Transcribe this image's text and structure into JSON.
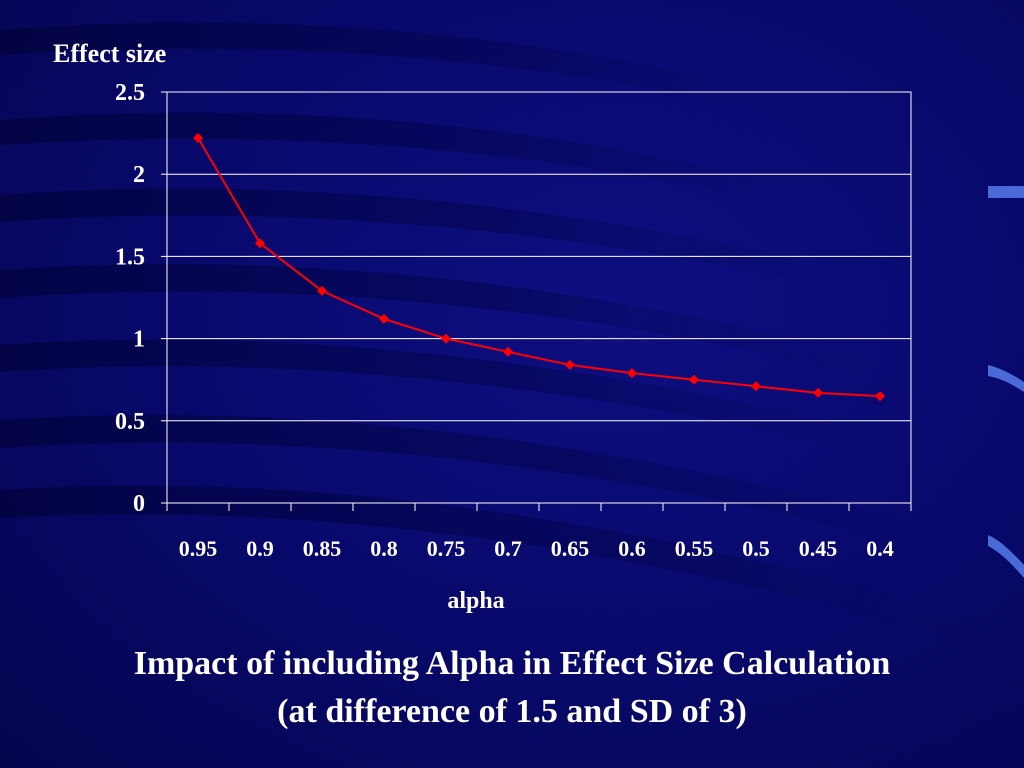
{
  "colors": {
    "background": "#0a0a6e",
    "plot_lines": "#ffffff",
    "series": "#ff0000"
  },
  "caption": {
    "line1": "Impact of including Alpha in Effect Size Calculation",
    "line2": "(at difference of 1.5 and SD of 3)"
  },
  "chart_data": {
    "type": "line",
    "title": "",
    "xlabel": "alpha",
    "ylabel": "Effect size",
    "categories": [
      "0.95",
      "0.9",
      "0.85",
      "0.8",
      "0.75",
      "0.7",
      "0.65",
      "0.6",
      "0.55",
      "0.5",
      "0.45",
      "0.4"
    ],
    "series": [
      {
        "values": [
          2.22,
          1.58,
          1.29,
          1.12,
          1.0,
          0.92,
          0.84,
          0.79,
          0.75,
          0.71,
          0.67,
          0.65
        ]
      }
    ],
    "ylim": [
      0,
      2.5
    ],
    "yticks": [
      "0",
      "0.5",
      "1",
      "1.5",
      "2",
      "2.5"
    ],
    "grid": true,
    "legend": "none"
  }
}
